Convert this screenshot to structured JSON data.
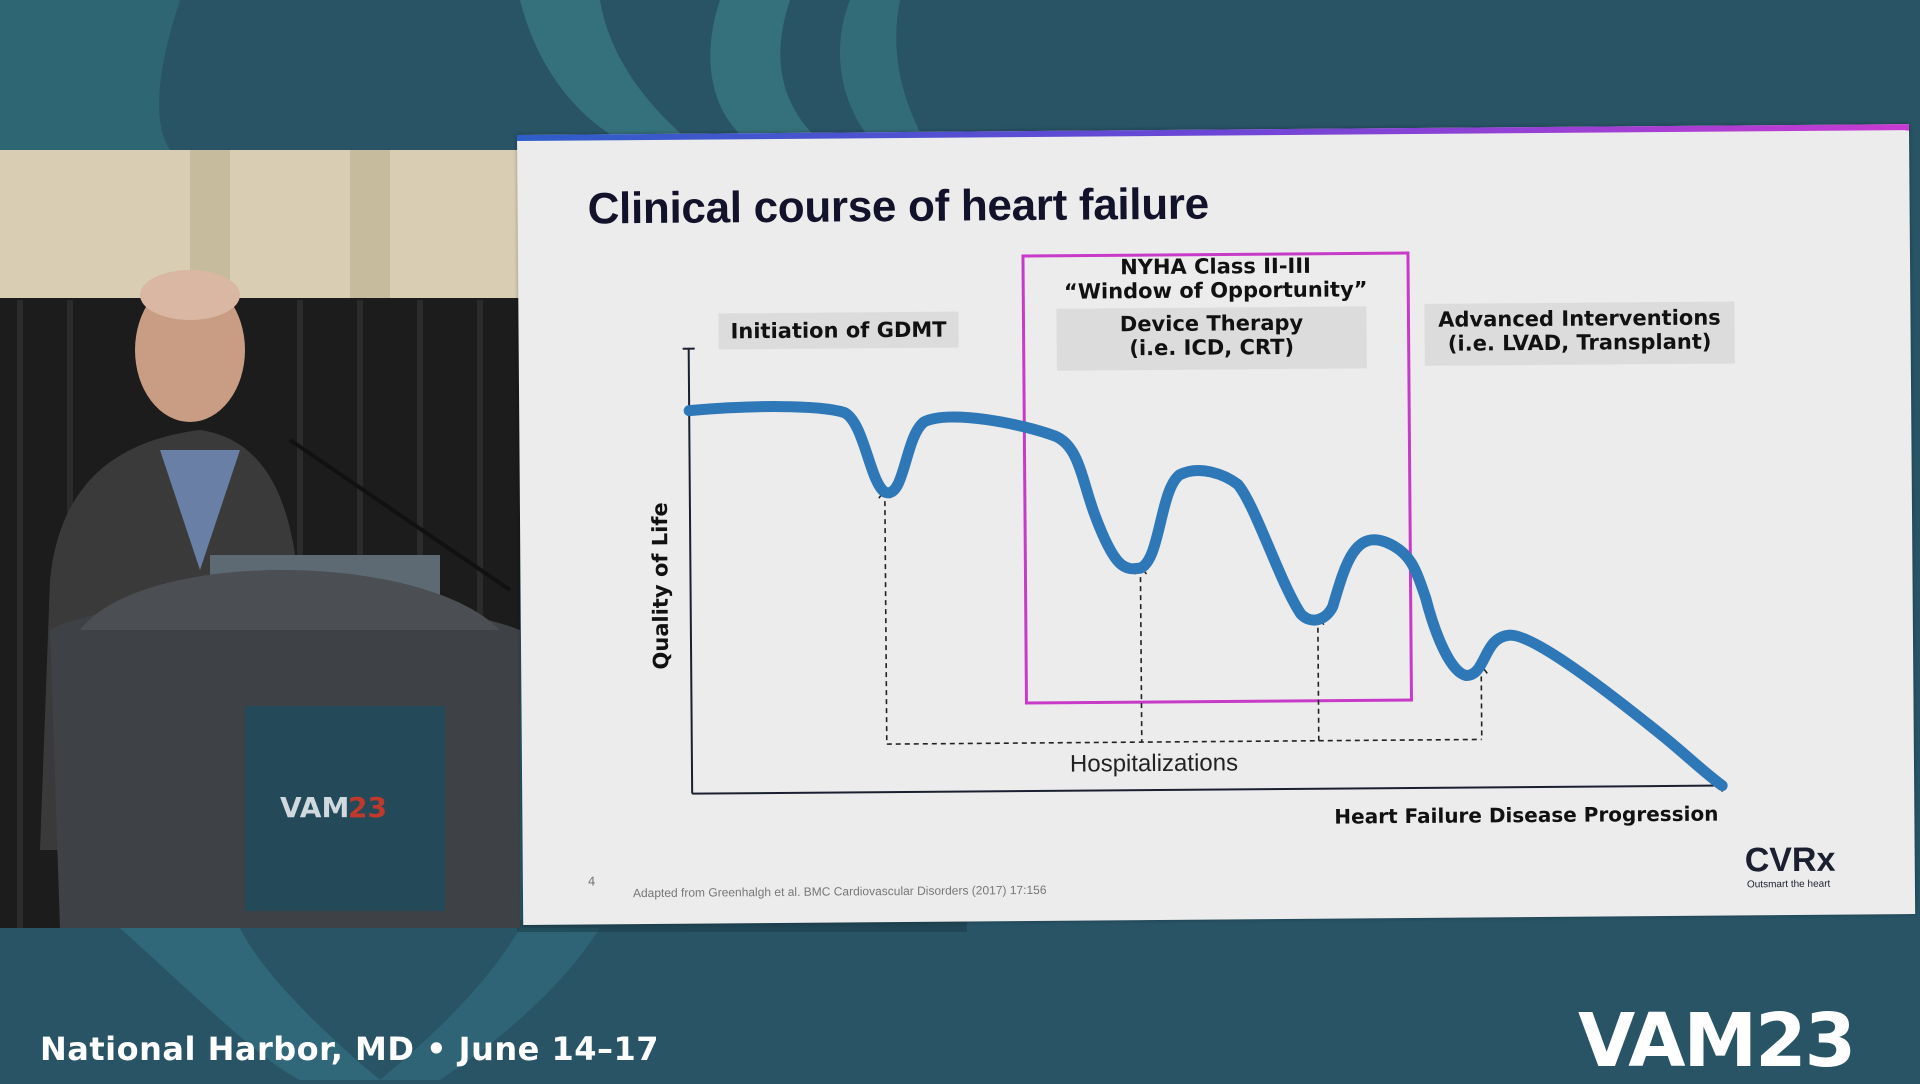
{
  "slide": {
    "title": "Clinical course of heart failure",
    "window_label_line1": "NYHA Class II-III",
    "window_label_line2": "“Window of Opportunity”",
    "phase1_label": "Initiation of GDMT",
    "phase2_line1": "Device Therapy",
    "phase2_line2": "(i.e. ICD, CRT)",
    "phase3_line1": "Advanced Interventions",
    "phase3_line2": "(i.e. LVAD, Transplant)",
    "y_axis_label": "Quality of Life",
    "x_axis_label": "Heart Failure Disease Progression",
    "hospitalizations_label": "Hospitalizations",
    "page_number": "4",
    "citation": "Adapted from Greenhalgh et al. BMC Cardiovascular Disorders (2017) 17:156",
    "logo_text": "CVRx",
    "logo_tagline": "Outsmart the heart",
    "curve_color": "#2f78b7",
    "window_box_color": "#c83ac8"
  },
  "event": {
    "location_date": "National Harbor, MD • June 14–17",
    "logo": "VAM23"
  },
  "colors": {
    "background": "#285466",
    "slide_background": "#ececec"
  }
}
